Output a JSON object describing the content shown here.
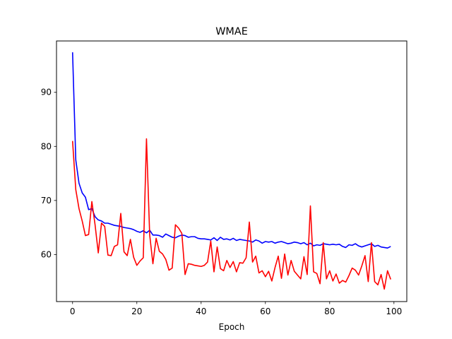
{
  "chart_data": {
    "type": "line",
    "title": "WMAE",
    "xlabel": "Epoch",
    "ylabel": "",
    "xlim": [
      -5,
      104
    ],
    "ylim": [
      51.3,
      99.5
    ],
    "xticks": [
      0,
      20,
      40,
      60,
      80,
      100
    ],
    "yticks": [
      60,
      70,
      80,
      90
    ],
    "grid": false,
    "legend": "none",
    "series": [
      {
        "color": "#0000ff",
        "x": [
          0,
          1,
          2,
          3,
          4,
          5,
          6,
          7,
          8,
          9,
          10,
          11,
          12,
          13,
          14,
          15,
          16,
          17,
          18,
          19,
          20,
          21,
          22,
          23,
          24,
          25,
          26,
          27,
          28,
          29,
          30,
          31,
          32,
          33,
          34,
          35,
          36,
          37,
          38,
          39,
          40,
          41,
          42,
          43,
          44,
          45,
          46,
          47,
          48,
          49,
          50,
          51,
          52,
          53,
          54,
          55,
          56,
          57,
          58,
          59,
          60,
          61,
          62,
          63,
          64,
          65,
          66,
          67,
          68,
          69,
          70,
          71,
          72,
          73,
          74,
          75,
          76,
          77,
          78,
          79,
          80,
          81,
          82,
          83,
          84,
          85,
          86,
          87,
          88,
          89,
          90,
          91,
          92,
          93,
          94,
          95,
          96,
          97,
          98,
          99
        ],
        "values": [
          97.4,
          77.5,
          73.2,
          71.4,
          70.6,
          68.3,
          68.5,
          67.0,
          66.4,
          66.2,
          65.8,
          65.8,
          65.6,
          65.4,
          65.3,
          65.2,
          65.0,
          64.9,
          64.8,
          64.6,
          64.3,
          64.1,
          64.4,
          64.0,
          64.5,
          63.6,
          63.6,
          63.5,
          63.2,
          63.8,
          63.5,
          63.2,
          63.1,
          63.4,
          63.6,
          63.5,
          63.2,
          63.3,
          63.3,
          63.0,
          62.9,
          62.9,
          62.8,
          62.7,
          63.1,
          62.6,
          63.2,
          62.8,
          62.9,
          62.7,
          63.0,
          62.6,
          62.8,
          62.7,
          62.6,
          62.5,
          62.3,
          62.7,
          62.5,
          62.1,
          62.4,
          62.3,
          62.4,
          62.1,
          62.3,
          62.4,
          62.2,
          62.0,
          62.1,
          62.3,
          62.2,
          62.0,
          62.2,
          61.8,
          62.1,
          61.6,
          61.8,
          61.7,
          62.0,
          61.9,
          61.8,
          61.9,
          61.8,
          61.9,
          61.5,
          61.3,
          61.8,
          61.7,
          62.0,
          61.6,
          61.4,
          61.6,
          61.8,
          62.0,
          61.5,
          61.7,
          61.4,
          61.3,
          61.2,
          61.5
        ],
        "name": ""
      },
      {
        "color": "#ff0000",
        "x": [
          0,
          1,
          2,
          3,
          4,
          5,
          6,
          7,
          8,
          9,
          10,
          11,
          12,
          13,
          14,
          15,
          16,
          17,
          18,
          19,
          20,
          21,
          22,
          23,
          24,
          25,
          26,
          27,
          28,
          29,
          30,
          31,
          32,
          33,
          34,
          35,
          36,
          37,
          38,
          39,
          40,
          41,
          42,
          43,
          44,
          45,
          46,
          47,
          48,
          49,
          50,
          51,
          52,
          53,
          54,
          55,
          56,
          57,
          58,
          59,
          60,
          61,
          62,
          63,
          64,
          65,
          66,
          67,
          68,
          69,
          70,
          71,
          72,
          73,
          74,
          75,
          76,
          77,
          78,
          79,
          80,
          81,
          82,
          83,
          84,
          85,
          86,
          87,
          88,
          89,
          90,
          91,
          92,
          93,
          94,
          95,
          96,
          97,
          98,
          99
        ],
        "values": [
          81.0,
          72.0,
          68.5,
          66.2,
          63.5,
          63.7,
          69.8,
          65.5,
          60.3,
          65.8,
          65.2,
          59.9,
          59.8,
          61.5,
          61.8,
          67.6,
          60.5,
          59.8,
          62.8,
          59.5,
          58.0,
          58.8,
          59.4,
          81.4,
          63.6,
          58.3,
          63.0,
          60.6,
          60.1,
          59.1,
          57.1,
          57.5,
          65.5,
          64.9,
          63.9,
          56.3,
          58.3,
          58.2,
          58.0,
          57.9,
          57.8,
          58.0,
          58.6,
          62.5,
          56.8,
          61.4,
          57.4,
          57.0,
          58.9,
          57.6,
          58.7,
          56.8,
          58.5,
          58.4,
          59.4,
          66.0,
          58.6,
          59.7,
          56.6,
          57.0,
          55.9,
          56.9,
          55.1,
          57.6,
          59.7,
          55.6,
          60.1,
          56.2,
          58.9,
          56.9,
          56.2,
          55.5,
          59.6,
          56.3,
          69.0,
          56.8,
          56.5,
          54.6,
          62.2,
          55.5,
          57.0,
          55.1,
          56.4,
          54.7,
          55.2,
          54.9,
          56.1,
          57.5,
          57.1,
          56.2,
          57.9,
          59.8,
          55.0,
          62.2,
          55.0,
          54.4,
          56.3,
          53.6,
          57.0,
          55.4
        ],
        "name": ""
      }
    ]
  }
}
